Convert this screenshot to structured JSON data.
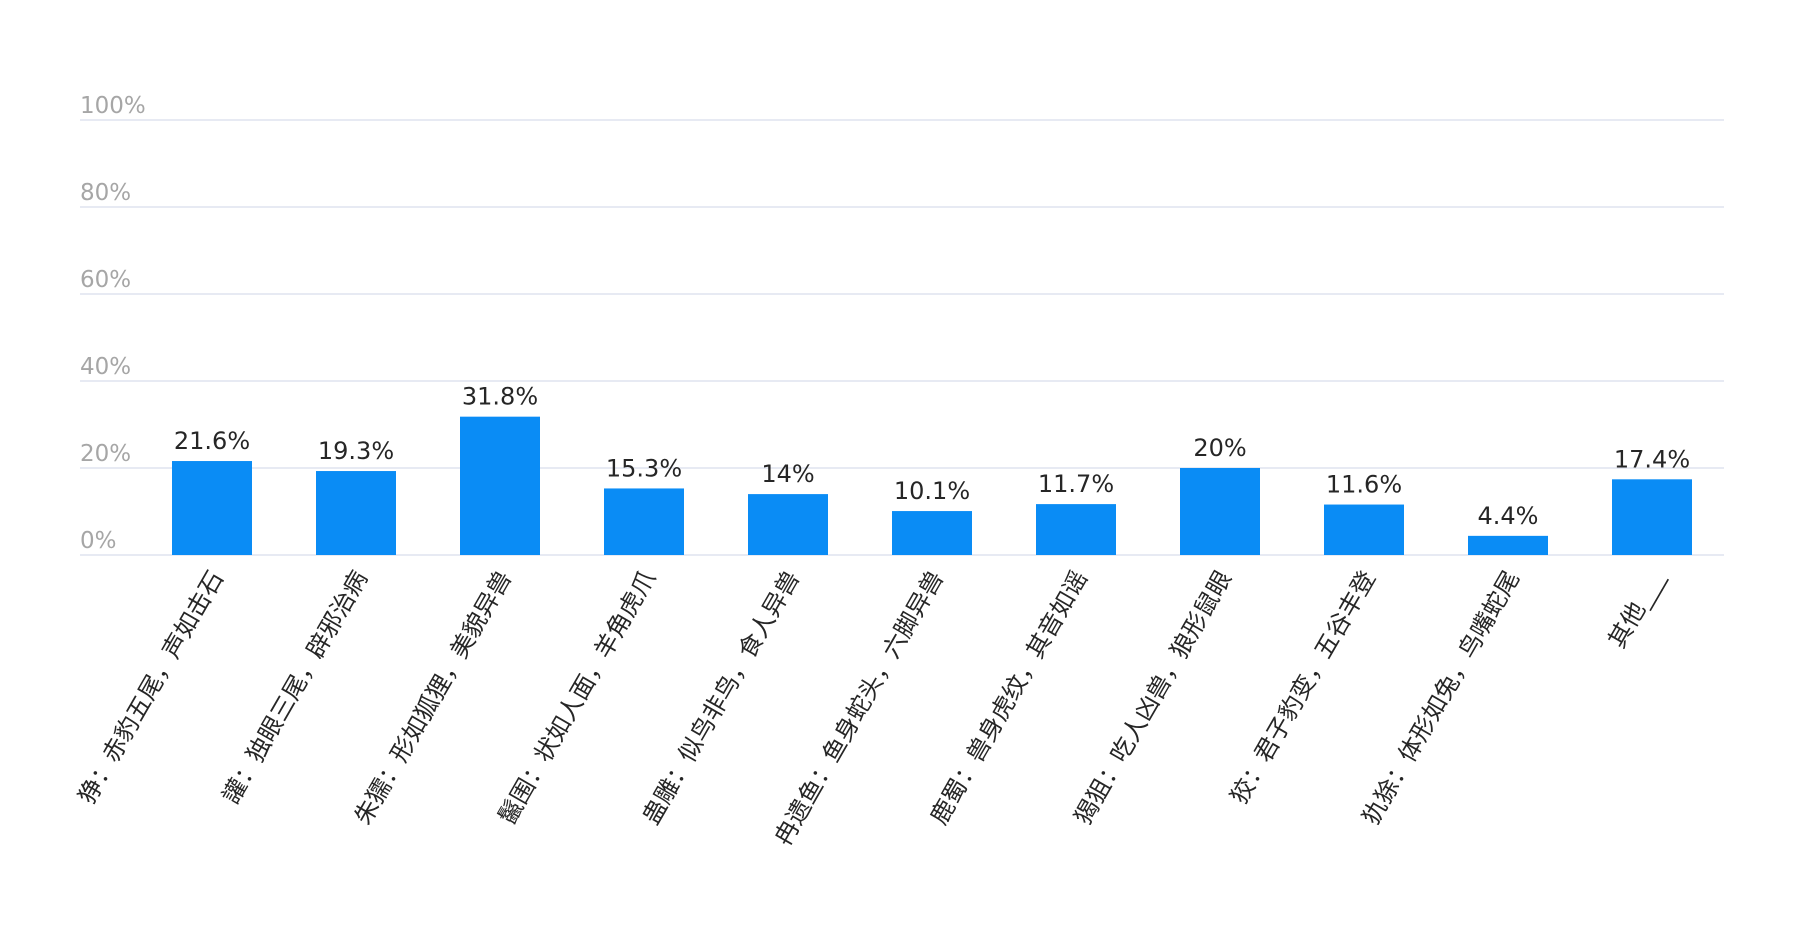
{
  "chart_data": {
    "type": "bar",
    "categories": [
      "狰：赤豹五尾，声如击石",
      "讙：独眼三尾，辟邪治病",
      "朱獳：形如狐狸，美貌异兽",
      "鬣围：状如人面，羊角虎爪",
      "蛊雕：似鸟非鸟，食人异兽",
      "冉遗鱼：鱼身蛇头，六脚异兽",
      "鹿蜀：兽身虎纹，其音如谣",
      "猲狙：吃人凶兽，狼形鼠眼",
      "狡：君子豹变，五谷丰登",
      "犰狳：体形如兔，鸟嘴蛇尾",
      "其他___"
    ],
    "values": [
      21.6,
      19.3,
      31.8,
      15.3,
      14,
      10.1,
      11.7,
      20,
      11.6,
      4.4,
      17.4
    ],
    "value_labels": [
      "21.6%",
      "19.3%",
      "31.8%",
      "15.3%",
      "14%",
      "10.1%",
      "11.7%",
      "20%",
      "11.6%",
      "4.4%",
      "17.4%"
    ],
    "yticks": [
      0,
      20,
      40,
      60,
      80,
      100
    ],
    "ytick_labels": [
      "0%",
      "20%",
      "40%",
      "60%",
      "80%",
      "100%"
    ],
    "ylim": [
      0,
      100
    ],
    "grid": true,
    "legend": "none",
    "bar_color": "#0a8cf5"
  }
}
